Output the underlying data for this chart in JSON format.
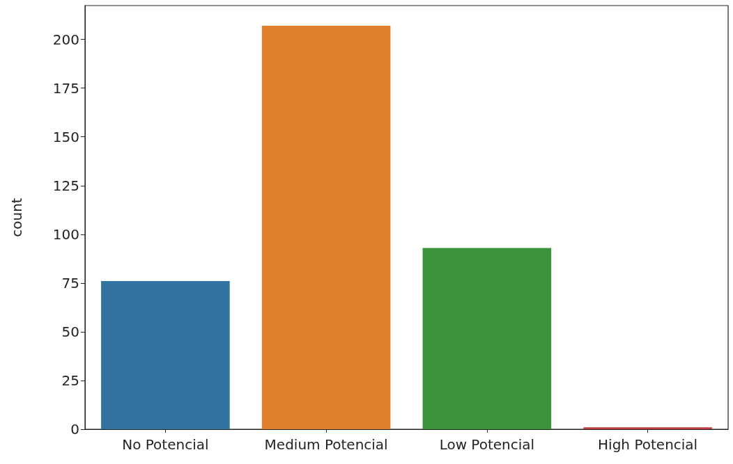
{
  "chart_data": {
    "type": "bar",
    "ylabel": "count",
    "categories": [
      "No Potencial",
      "Medium Potencial",
      "Low Potencial",
      "High Potencial"
    ],
    "values": [
      76,
      207,
      93,
      1
    ],
    "colors": [
      "#3274a1",
      "#e1812c",
      "#3a923a",
      "#c03d3e"
    ],
    "ylim": [
      0,
      217.35
    ],
    "yticks": [
      0,
      25,
      50,
      75,
      100,
      125,
      150,
      175,
      200
    ],
    "grid": false
  }
}
